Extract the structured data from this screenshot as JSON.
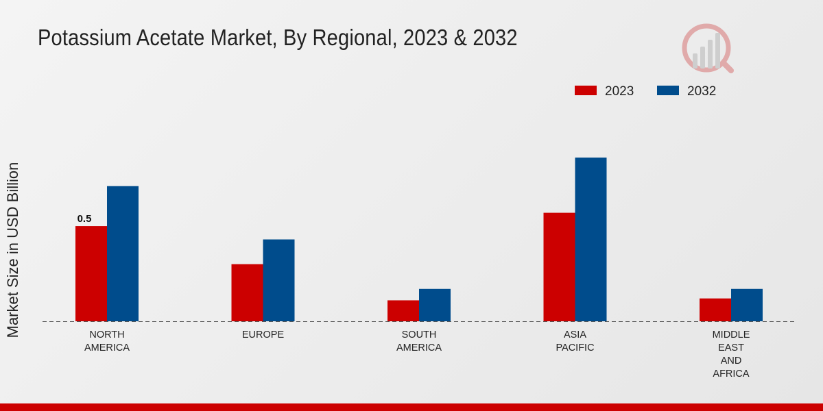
{
  "colors": {
    "series_2023": "#cc0000",
    "series_2032": "#004c8c",
    "bottom_bar": "#cc0000",
    "baseline": "#555555",
    "logo": "#cc3333"
  },
  "icons": {
    "logo": "logo-watermark-icon"
  },
  "chart_data": {
    "type": "bar",
    "title": "Potassium Acetate Market, By Regional, 2023 & 2032",
    "xlabel": "",
    "ylabel": "Market Size in USD Billion",
    "categories": [
      [
        "NORTH",
        "AMERICA"
      ],
      [
        "EUROPE"
      ],
      [
        "SOUTH",
        "AMERICA"
      ],
      [
        "ASIA",
        "PACIFIC"
      ],
      [
        "MIDDLE",
        "EAST",
        "AND",
        "AFRICA"
      ]
    ],
    "series": [
      {
        "name": "2023",
        "values": [
          0.5,
          0.3,
          0.11,
          0.57,
          0.12
        ]
      },
      {
        "name": "2032",
        "values": [
          0.71,
          0.43,
          0.17,
          0.86,
          0.17
        ]
      }
    ],
    "data_labels": [
      {
        "series": 0,
        "index": 0,
        "text": "0.5"
      }
    ],
    "ylim": [
      0,
      1.4
    ],
    "grid": false,
    "legend_position": "top-right"
  }
}
